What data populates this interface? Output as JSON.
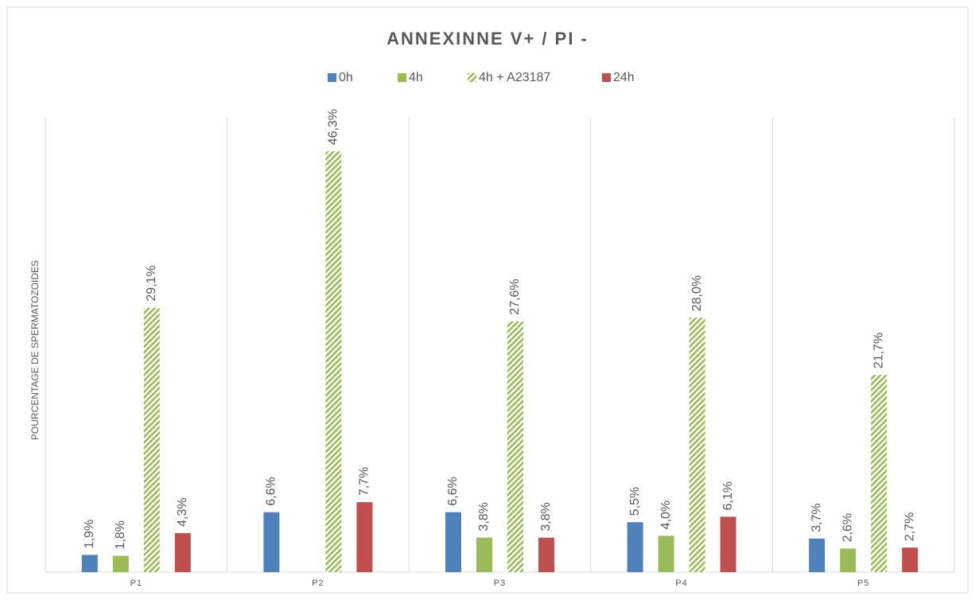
{
  "chart_data": {
    "type": "bar",
    "title": "ANNEXINNE V+ / PI -",
    "y_label": "POURCENTAGE DE SPERMATOZOIDES",
    "categories": [
      "P1",
      "P2",
      "P3",
      "P4",
      "P5"
    ],
    "series": [
      {
        "name": "0h",
        "color": "#4f81bd",
        "values": [
          1.9,
          6.6,
          6.6,
          5.5,
          3.7
        ],
        "value_labels": [
          "1,9%",
          "6,6%",
          "6,6%",
          "5,5%",
          "3,7%"
        ]
      },
      {
        "name": "4h",
        "color": "#9bbb59",
        "values": [
          1.8,
          null,
          3.8,
          4.0,
          2.6
        ],
        "value_labels": [
          "1,8%",
          null,
          "3,8%",
          "4,0%",
          "2,6%"
        ]
      },
      {
        "name": "4h + A23187",
        "color": "#9bbb59",
        "pattern": "diagonal",
        "values": [
          29.1,
          46.3,
          27.6,
          28.0,
          21.7
        ],
        "value_labels": [
          "29,1%",
          "46,3%",
          "27,6%",
          "28,0%",
          "21,7%"
        ]
      },
      {
        "name": "24h",
        "color": "#c0504d",
        "values": [
          4.3,
          7.7,
          3.8,
          6.1,
          2.7
        ],
        "value_labels": [
          "4,3%",
          "7,7%",
          "3,8%",
          "6,1%",
          "2,7%"
        ]
      }
    ],
    "ylim": [
      0,
      50
    ],
    "legend": "top"
  }
}
